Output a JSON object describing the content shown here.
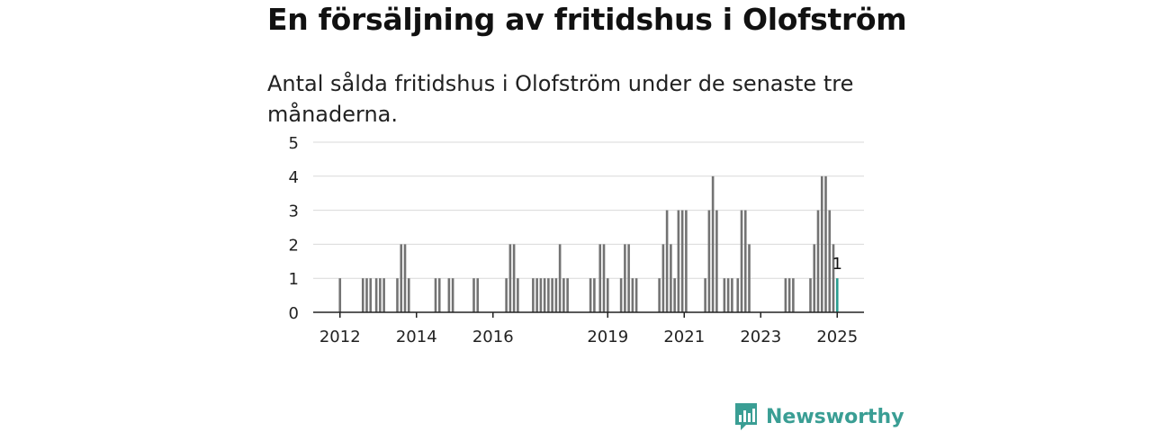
{
  "title": "En försäljning av fritidshus i Olofström",
  "subtitle": "Antal sålda fritidshus i Olofström under de senaste tre månaderna.",
  "brand": {
    "name": "Newsworthy",
    "color": "#3a9e94",
    "logo_icon": "bar-chart-speech-bubble-icon"
  },
  "chart_data": {
    "type": "bar",
    "ylim": [
      0,
      5
    ],
    "yticks": [
      0,
      1,
      2,
      3,
      4,
      5
    ],
    "xticks": [
      {
        "label": "2012",
        "x": 2012.0
      },
      {
        "label": "2014",
        "x": 2014.0
      },
      {
        "label": "2016",
        "x": 2016.0
      },
      {
        "label": "2019",
        "x": 2019.0
      },
      {
        "label": "2021",
        "x": 2021.0
      },
      {
        "label": "2023",
        "x": 2023.0
      },
      {
        "label": "2025",
        "x": 2025.0
      }
    ],
    "xlim": [
      2011.3,
      2025.7
    ],
    "grid": true,
    "bar_color": "#737373",
    "highlight_color": "#2a9d8f",
    "highlight_label": "1",
    "points": [
      {
        "x": 2012.0,
        "y": 1
      },
      {
        "x": 2012.6,
        "y": 1
      },
      {
        "x": 2012.7,
        "y": 1
      },
      {
        "x": 2012.8,
        "y": 1
      },
      {
        "x": 2012.95,
        "y": 1
      },
      {
        "x": 2013.05,
        "y": 1
      },
      {
        "x": 2013.15,
        "y": 1
      },
      {
        "x": 2013.5,
        "y": 1
      },
      {
        "x": 2013.6,
        "y": 2
      },
      {
        "x": 2013.7,
        "y": 2
      },
      {
        "x": 2013.8,
        "y": 1
      },
      {
        "x": 2014.5,
        "y": 1
      },
      {
        "x": 2014.6,
        "y": 1
      },
      {
        "x": 2014.85,
        "y": 1
      },
      {
        "x": 2014.95,
        "y": 1
      },
      {
        "x": 2015.5,
        "y": 1
      },
      {
        "x": 2015.6,
        "y": 1
      },
      {
        "x": 2016.35,
        "y": 1
      },
      {
        "x": 2016.45,
        "y": 2
      },
      {
        "x": 2016.55,
        "y": 2
      },
      {
        "x": 2016.65,
        "y": 1
      },
      {
        "x": 2017.05,
        "y": 1
      },
      {
        "x": 2017.15,
        "y": 1
      },
      {
        "x": 2017.25,
        "y": 1
      },
      {
        "x": 2017.35,
        "y": 1
      },
      {
        "x": 2017.45,
        "y": 1
      },
      {
        "x": 2017.55,
        "y": 1
      },
      {
        "x": 2017.65,
        "y": 1
      },
      {
        "x": 2017.75,
        "y": 2
      },
      {
        "x": 2017.85,
        "y": 1
      },
      {
        "x": 2017.95,
        "y": 1
      },
      {
        "x": 2018.55,
        "y": 1
      },
      {
        "x": 2018.65,
        "y": 1
      },
      {
        "x": 2018.8,
        "y": 2
      },
      {
        "x": 2018.9,
        "y": 2
      },
      {
        "x": 2019.0,
        "y": 1
      },
      {
        "x": 2019.35,
        "y": 1
      },
      {
        "x": 2019.45,
        "y": 2
      },
      {
        "x": 2019.55,
        "y": 2
      },
      {
        "x": 2019.65,
        "y": 1
      },
      {
        "x": 2019.75,
        "y": 1
      },
      {
        "x": 2020.35,
        "y": 1
      },
      {
        "x": 2020.45,
        "y": 2
      },
      {
        "x": 2020.55,
        "y": 3
      },
      {
        "x": 2020.65,
        "y": 2
      },
      {
        "x": 2020.75,
        "y": 1
      },
      {
        "x": 2020.85,
        "y": 3
      },
      {
        "x": 2020.95,
        "y": 3
      },
      {
        "x": 2021.05,
        "y": 3
      },
      {
        "x": 2021.55,
        "y": 1
      },
      {
        "x": 2021.65,
        "y": 3
      },
      {
        "x": 2021.75,
        "y": 4
      },
      {
        "x": 2021.85,
        "y": 3
      },
      {
        "x": 2022.05,
        "y": 1
      },
      {
        "x": 2022.15,
        "y": 1
      },
      {
        "x": 2022.25,
        "y": 1
      },
      {
        "x": 2022.4,
        "y": 1
      },
      {
        "x": 2022.5,
        "y": 3
      },
      {
        "x": 2022.6,
        "y": 3
      },
      {
        "x": 2022.7,
        "y": 2
      },
      {
        "x": 2023.65,
        "y": 1
      },
      {
        "x": 2023.75,
        "y": 1
      },
      {
        "x": 2023.85,
        "y": 1
      },
      {
        "x": 2024.3,
        "y": 1
      },
      {
        "x": 2024.4,
        "y": 2
      },
      {
        "x": 2024.5,
        "y": 3
      },
      {
        "x": 2024.6,
        "y": 4
      },
      {
        "x": 2024.7,
        "y": 4
      },
      {
        "x": 2024.8,
        "y": 3
      },
      {
        "x": 2024.9,
        "y": 2
      },
      {
        "x": 2025.0,
        "y": 1,
        "highlight": true
      }
    ]
  }
}
